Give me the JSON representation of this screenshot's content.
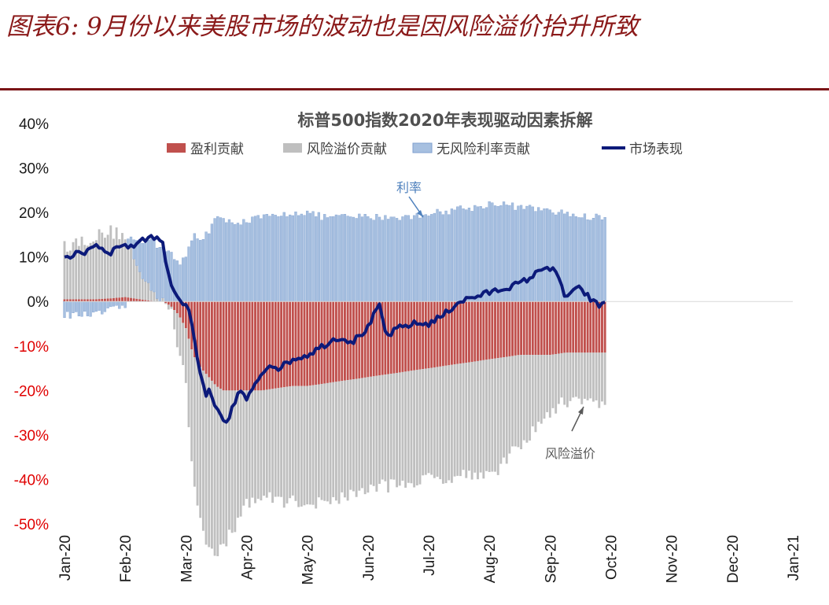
{
  "figure_title": "图表6: 9月份以来美股市场的波动也是因风险溢价抬升所致",
  "chart_data": {
    "type": "bar",
    "title": "标普500指数2020年表现驱动因素拆解",
    "ylim": [
      -50,
      40
    ],
    "yticks": [
      "40%",
      "30%",
      "20%",
      "10%",
      "0%",
      "-10%",
      "-20%",
      "-30%",
      "-40%",
      "-50%"
    ],
    "xticks": [
      "Jan-20",
      "Feb-20",
      "Mar-20",
      "Apr-20",
      "May-20",
      "Jun-20",
      "Jul-20",
      "Aug-20",
      "Sep-20",
      "Oct-20",
      "Nov-20",
      "Dec-20",
      "Jan-21"
    ],
    "xrange_months": [
      0,
      12
    ],
    "legend": [
      "盈利贡献",
      "风险溢价贡献",
      "无风险利率贡献",
      "市场表现"
    ],
    "colors": {
      "earnings": "#c0504d",
      "risk_premium": "#bfbfbf",
      "risk_free": "#a7c0e0",
      "risk_free_edge": "#7f9fcf",
      "market": "#0c1a7a",
      "neg_tick": "#e00000",
      "pos_tick": "#1a1a1a",
      "annotation_rate": "#4f81bd",
      "annotation_rp": "#595959"
    },
    "annotations": [
      {
        "label": "利率",
        "series": "risk_free"
      },
      {
        "label": "风险溢价",
        "series": "risk_premium"
      }
    ],
    "series_keypoints": {
      "month": [
        0.0,
        0.25,
        0.5,
        0.75,
        1.0,
        1.25,
        1.5,
        1.62,
        1.75,
        1.88,
        2.0,
        2.12,
        2.25,
        2.38,
        2.5,
        2.62,
        2.75,
        2.88,
        3.0,
        3.25,
        3.5,
        3.75,
        4.0,
        4.25,
        4.5,
        4.75,
        5.0,
        5.25,
        5.5,
        5.75,
        6.0,
        6.25,
        6.5,
        6.75,
        7.0,
        7.25,
        7.5,
        7.75,
        8.0,
        8.25,
        8.5,
        8.75,
        8.92
      ],
      "risk_free": [
        -3,
        -3,
        -3,
        -2,
        -1,
        8,
        12,
        12,
        11,
        8,
        10,
        15,
        14,
        16,
        19,
        18,
        18,
        18,
        18,
        19,
        19,
        20,
        20,
        19,
        19,
        19,
        19,
        19,
        19,
        19,
        20,
        20,
        21,
        21,
        22,
        22,
        21,
        21,
        20,
        20,
        19,
        19,
        19
      ],
      "risk_premium": [
        12,
        13,
        14,
        15,
        14,
        5,
        2,
        1,
        0,
        -8,
        -13,
        -28,
        -35,
        -38,
        -37,
        -35,
        -32,
        -29,
        -25,
        -24,
        -25,
        -26,
        -26,
        -27,
        -26,
        -26,
        -25,
        -25,
        -25,
        -25,
        -25,
        -25,
        -25,
        -25,
        -26,
        -24,
        -20,
        -17,
        -13,
        -11,
        -10,
        -12,
        -11
      ],
      "earnings": [
        0.5,
        0.5,
        0.5,
        0.7,
        1.0,
        0.5,
        0.0,
        0.0,
        -1,
        -3,
        -6,
        -12,
        -15,
        -17,
        -19,
        -20,
        -20,
        -20,
        -20,
        -20,
        -19.5,
        -19,
        -19,
        -18.5,
        -18,
        -17.5,
        -17,
        -16.5,
        -16,
        -15.5,
        -15,
        -14.5,
        -14,
        -13.5,
        -13,
        -12.5,
        -12,
        -12,
        -12,
        -11.5,
        -11.5,
        -11.5,
        -11.5
      ]
    },
    "market_keypoints": {
      "month": [
        0.0,
        0.17,
        0.33,
        0.5,
        0.6,
        0.75,
        0.95,
        1.1,
        1.25,
        1.45,
        1.6,
        1.75,
        1.88,
        1.97,
        2.05,
        2.13,
        2.2,
        2.27,
        2.33,
        2.4,
        2.47,
        2.55,
        2.62,
        2.68,
        2.75,
        2.82,
        2.9,
        3.0,
        3.1,
        3.25,
        3.4,
        3.55,
        3.75,
        4.0,
        4.25,
        4.5,
        4.75,
        5.0,
        5.1,
        5.2,
        5.3,
        5.5,
        5.75,
        6.0,
        6.25,
        6.5,
        6.75,
        7.0,
        7.25,
        7.5,
        7.75,
        7.9,
        8.05,
        8.15,
        8.25,
        8.35,
        8.5,
        8.7,
        8.82,
        8.92
      ],
      "market": [
        10,
        10.5,
        11,
        13,
        12,
        11,
        13,
        12,
        14,
        14.5,
        14,
        4,
        1,
        -1,
        -2,
        -8,
        -14,
        -18,
        -21,
        -20,
        -24,
        -25,
        -27,
        -28,
        -24,
        -22,
        -20,
        -22,
        -20,
        -16,
        -14,
        -15,
        -13,
        -12,
        -10,
        -8,
        -9,
        -6,
        -3,
        -1,
        -8,
        -6,
        -5,
        -5,
        -3,
        0,
        1,
        2,
        3,
        4,
        6,
        8,
        7,
        5,
        1,
        2,
        3,
        0,
        -1,
        0
      ]
    }
  }
}
